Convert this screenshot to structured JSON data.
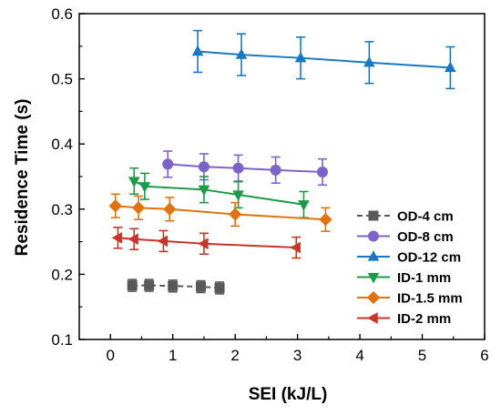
{
  "chart_data": {
    "type": "scatter",
    "title": "",
    "xlabel": "SEI (kJ/L)",
    "ylabel": "Residence Time (s)",
    "xlim": [
      -0.5,
      6
    ],
    "ylim": [
      0.1,
      0.6
    ],
    "xticks": [
      0,
      1,
      2,
      3,
      4,
      5,
      6
    ],
    "yticks": [
      0.1,
      0.2,
      0.3,
      0.4,
      0.5,
      0.6
    ],
    "xtick_labels": [
      "0",
      "1",
      "2",
      "3",
      "4",
      "5",
      "6"
    ],
    "ytick_labels": [
      "0.1",
      "0.2",
      "0.3",
      "0.4",
      "0.5",
      "0.6"
    ],
    "grid": false,
    "legend_position": "lower-right",
    "error_bars": true,
    "series": [
      {
        "name": "OD-4 cm",
        "color": "#595959",
        "marker": "square",
        "line": "dashed",
        "x": [
          0.35,
          0.62,
          1.0,
          1.45,
          1.75
        ],
        "y": [
          0.183,
          0.183,
          0.182,
          0.181,
          0.179
        ],
        "err": [
          0.009,
          0.009,
          0.009,
          0.009,
          0.009
        ]
      },
      {
        "name": "OD-8 cm",
        "color": "#7b63c8",
        "marker": "circle",
        "line": "solid",
        "x": [
          0.92,
          1.5,
          2.05,
          2.65,
          3.4
        ],
        "y": [
          0.369,
          0.365,
          0.363,
          0.36,
          0.357
        ],
        "err": [
          0.02,
          0.02,
          0.02,
          0.02,
          0.02
        ]
      },
      {
        "name": "OD-12 cm",
        "color": "#1a78c2",
        "marker": "triangle-up",
        "line": "solid",
        "x": [
          1.4,
          2.1,
          3.05,
          4.15,
          5.45
        ],
        "y": [
          0.542,
          0.537,
          0.532,
          0.525,
          0.517
        ],
        "err": [
          0.032,
          0.032,
          0.032,
          0.032,
          0.032
        ]
      },
      {
        "name": "ID-1 mm",
        "color": "#1f9a48",
        "marker": "triangle-down",
        "line": "solid",
        "x": [
          0.38,
          0.55,
          1.5,
          2.05,
          3.1
        ],
        "y": [
          0.343,
          0.335,
          0.33,
          0.322,
          0.307
        ],
        "err": [
          0.02,
          0.02,
          0.02,
          0.02,
          0.02
        ]
      },
      {
        "name": "ID-1.5 mm",
        "color": "#e0730f",
        "marker": "diamond",
        "line": "solid",
        "x": [
          0.08,
          0.45,
          0.95,
          2.0,
          3.45
        ],
        "y": [
          0.305,
          0.302,
          0.3,
          0.292,
          0.284
        ],
        "err": [
          0.018,
          0.018,
          0.018,
          0.018,
          0.018
        ]
      },
      {
        "name": "ID-2 mm",
        "color": "#c8352a",
        "marker": "triangle-left",
        "line": "solid",
        "x": [
          0.12,
          0.38,
          0.85,
          1.5,
          2.98
        ],
        "y": [
          0.256,
          0.254,
          0.251,
          0.247,
          0.241
        ],
        "err": [
          0.016,
          0.016,
          0.016,
          0.016,
          0.016
        ]
      }
    ]
  }
}
